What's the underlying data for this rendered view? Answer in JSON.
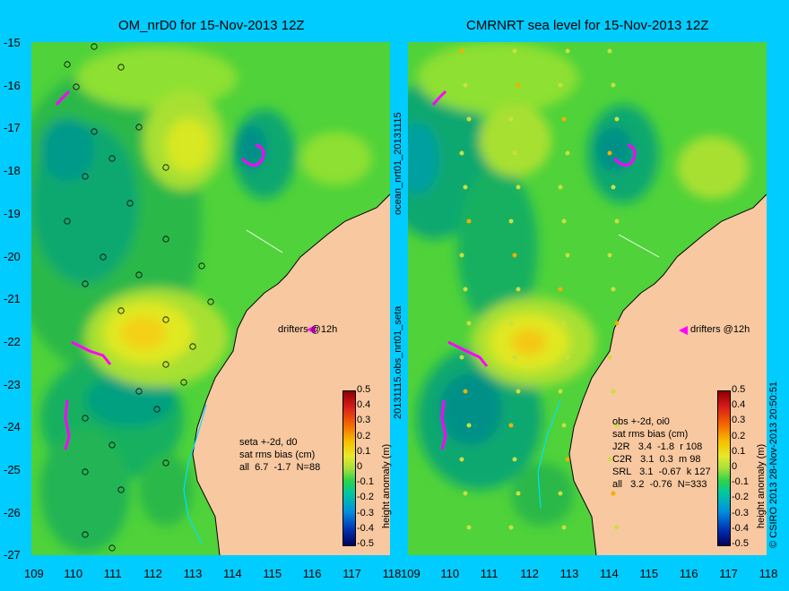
{
  "left_panel": {
    "title": "OM_nrD0 for 15-Nov-2013 12Z",
    "drifter_label": "drifters @12h",
    "stats_title": "seta +-2d, d0",
    "stats_subtitle": "sat rms bias (cm)",
    "stats_rows": [
      "all  6.7  -1.7  N=88"
    ]
  },
  "right_panel": {
    "title": "CMRNRT sea level  for 15-Nov-2013 12Z",
    "drifter_label": "drifters @12h",
    "stats_title": "obs +-2d, oi0",
    "stats_subtitle": "sat rms bias (cm)",
    "stats_rows": [
      "J2R   3.4  -1.8  r 108",
      "C2R   3.1  0.3  m 98",
      "SRL   3.1  -0.67  k 127",
      "all   3.2  -0.76  N=333"
    ]
  },
  "between_text": "20131115.obs_nrt01_seta",
  "between_text_top": "ocean_nrt01_20131115",
  "footer_credit": "© CSIRO 2013   28-Nov-2013 20:50:51",
  "colorbar": {
    "label": "height anomaly (m)",
    "ticks": [
      "0.5",
      "0.4",
      "0.3",
      "0.2",
      "0.1",
      "0",
      "-0.1",
      "-0.2",
      "-0.3",
      "-0.4",
      "-0.5"
    ]
  },
  "axes": {
    "y_ticks": [
      "-15",
      "-16",
      "-17",
      "-18",
      "-19",
      "-20",
      "-21",
      "-22",
      "-23",
      "-24",
      "-25",
      "-26",
      "-27"
    ],
    "x_ticks": [
      "109",
      "110",
      "111",
      "112",
      "113",
      "114",
      "115",
      "116",
      "117",
      "118"
    ]
  },
  "colors": {
    "background": "#00ccff",
    "land": "#f8c8a0",
    "field_base": "#5ad23a",
    "drifter": "#ff00ff"
  }
}
